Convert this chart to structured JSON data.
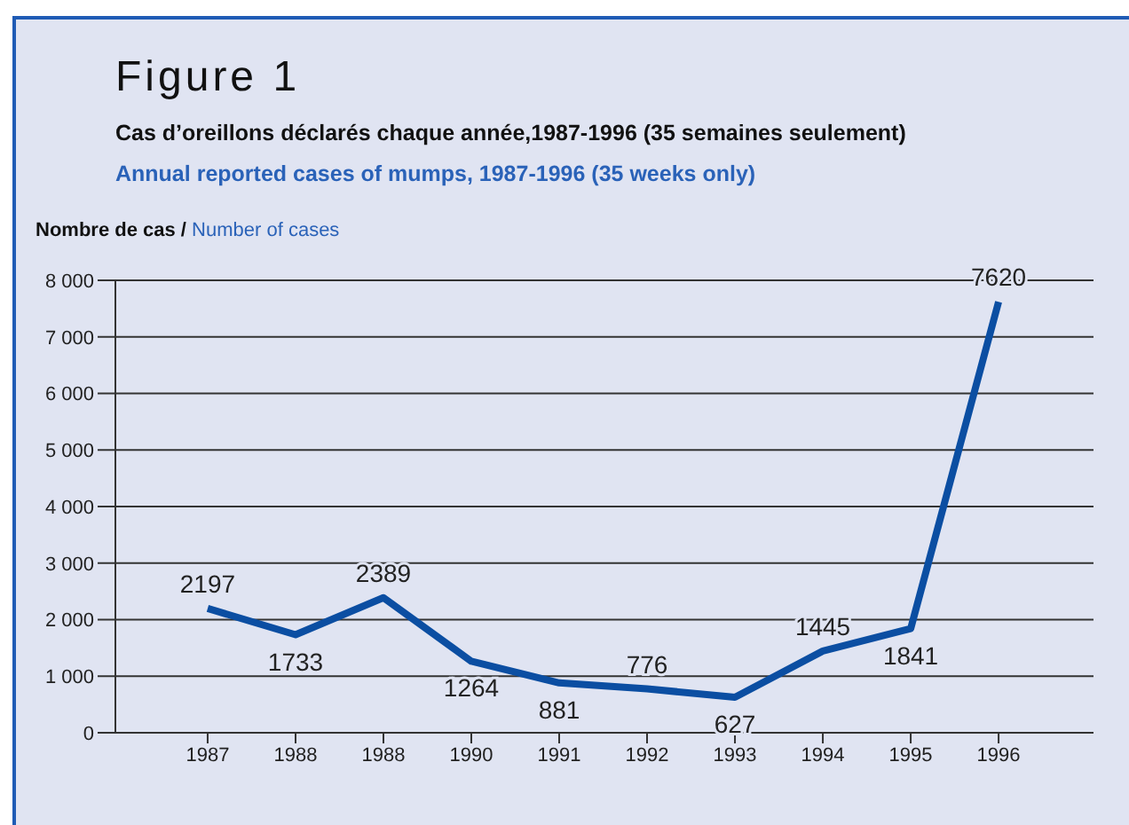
{
  "chart_data": {
    "type": "line",
    "title": "Figure 1",
    "subtitle": "Cas d’oreillons déclarés chaque année,1987-1996 (35 semaines seulement)",
    "annotations": [
      "Annual reported cases of mumps, 1987-1996 (35 weeks only)"
    ],
    "ylabel": "Nombre de cas / Number of cases",
    "categories": [
      "1987",
      "1988",
      "1988",
      "1990",
      "1991",
      "1992",
      "1993",
      "1994",
      "1995",
      "1996"
    ],
    "series": [
      {
        "color": "#0b4ea2",
        "values": [
          2197,
          1733,
          2389,
          1264,
          881,
          776,
          627,
          1445,
          1841,
          7620
        ]
      }
    ],
    "ylim": [
      0,
      8000
    ],
    "yticks": [
      0,
      {
        "value": 1000,
        "label": "1 000"
      },
      {
        "value": 2000,
        "label": "2 000"
      },
      {
        "value": 3000,
        "label": "3 000"
      },
      {
        "value": 4000,
        "label": "4 000"
      },
      {
        "value": 5000,
        "label": "5 000"
      },
      {
        "value": 6000,
        "label": "6 000"
      },
      {
        "value": 7000,
        "label": "7 000"
      },
      {
        "value": 8000,
        "label": "8 000"
      }
    ],
    "grid": "y",
    "legend": false,
    "marker": "none",
    "line_style": "solid",
    "data_labels": true
  }
}
